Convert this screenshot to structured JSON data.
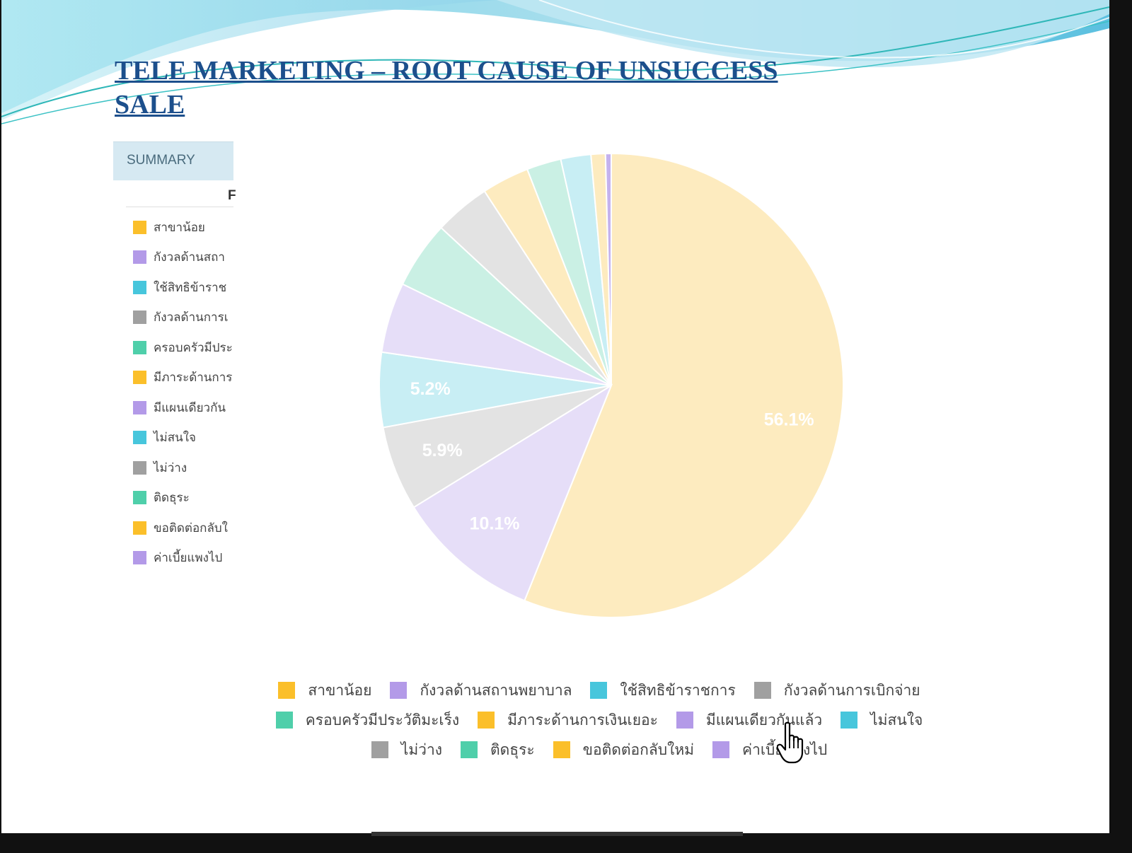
{
  "title": "TELE MARKETING – ROOT CAUSE OF UNSUCCESS SALE",
  "summary_tab": "SUMMARY",
  "side_column_head": "F",
  "colors": {
    "title": "#1c4f8c",
    "wave_dark": "#4fc3dc",
    "wave_light": "#b9e6f2"
  },
  "legend": [
    {
      "label": "สาขาน้อย",
      "color": "#fbbf2a"
    },
    {
      "label": "กังวลด้านสถานพยาบาล",
      "color": "#b39ae8"
    },
    {
      "label": "ใช้สิทธิข้าราชการ",
      "color": "#47c6dc"
    },
    {
      "label": "กังวลด้านการเบิกจ่าย",
      "color": "#a0a0a0"
    },
    {
      "label": "ครอบครัวมีประวัติมะเร็ง",
      "color": "#4fcfaa"
    },
    {
      "label": "มีภาระด้านการเงินเยอะ",
      "color": "#fbbf2a"
    },
    {
      "label": "มีแผนเดียวกันแล้ว",
      "color": "#b39ae8"
    },
    {
      "label": "ไม่สนใจ",
      "color": "#47c6dc"
    },
    {
      "label": "ไม่ว่าง",
      "color": "#a0a0a0"
    },
    {
      "label": "ติดธุระ",
      "color": "#4fcfaa"
    },
    {
      "label": "ขอติดต่อกลับใหม่",
      "color": "#fbbf2a"
    },
    {
      "label": "ค่าเบี้ยแพงไป",
      "color": "#b39ae8"
    }
  ],
  "side_legend_labels": [
    "สาขาน้อย",
    "กังวลด้านสถา",
    "ใช้สิทธิข้าราช",
    "กังวลด้านการเ",
    "ครอบครัวมีประ",
    "มีภาระด้านการ",
    "มีแผนเดียวกัน",
    "ไม่สนใจ",
    "ไม่ว่าง",
    "ติดธุระ",
    "ขอติดต่อกลับใ",
    "ค่าเบี้ยแพงไป"
  ],
  "chart_data": {
    "type": "pie",
    "title": "TELE MARKETING – ROOT CAUSE OF UNSUCCESS SALE",
    "legend_position": "bottom",
    "slices": [
      {
        "label": "สาขาน้อย",
        "value": 56.1,
        "display": "56.1%",
        "fill": "#fdebbf"
      },
      {
        "label": "กังวลด้านสถานพยาบาล",
        "value": 10.1,
        "display": "10.1%",
        "fill": "#e6def8"
      },
      {
        "label": "กังวลด้านการเบิกจ่าย",
        "value": 5.9,
        "display": "5.9%",
        "fill": "#e3e3e3"
      },
      {
        "label": "ใช้สิทธิข้าราชการ",
        "value": 5.2,
        "display": "5.2%",
        "fill": "#c8eef4"
      },
      {
        "label": "มีแผนเดียวกันแล้ว",
        "value": 4.9,
        "display": "",
        "fill": "#e6def8"
      },
      {
        "label": "ครอบครัวมีประวัติมะเร็ง",
        "value": 4.7,
        "display": "",
        "fill": "#caf0e4"
      },
      {
        "label": "ไม่ว่าง",
        "value": 3.9,
        "display": "",
        "fill": "#e3e3e3"
      },
      {
        "label": "มีภาระด้านการเงินเยอะ",
        "value": 3.3,
        "display": "",
        "fill": "#fdebbf"
      },
      {
        "label": "ติดธุระ",
        "value": 2.4,
        "display": "",
        "fill": "#caf0e4"
      },
      {
        "label": "ไม่สนใจ",
        "value": 2.1,
        "display": "",
        "fill": "#c8eef4"
      },
      {
        "label": "ขอติดต่อกลับใหม่",
        "value": 1.0,
        "display": "",
        "fill": "#fdebbf"
      },
      {
        "label": "ค่าเบี้ยแพงไป",
        "value": 0.4,
        "display": "",
        "fill": "#c4b2ee"
      }
    ]
  }
}
